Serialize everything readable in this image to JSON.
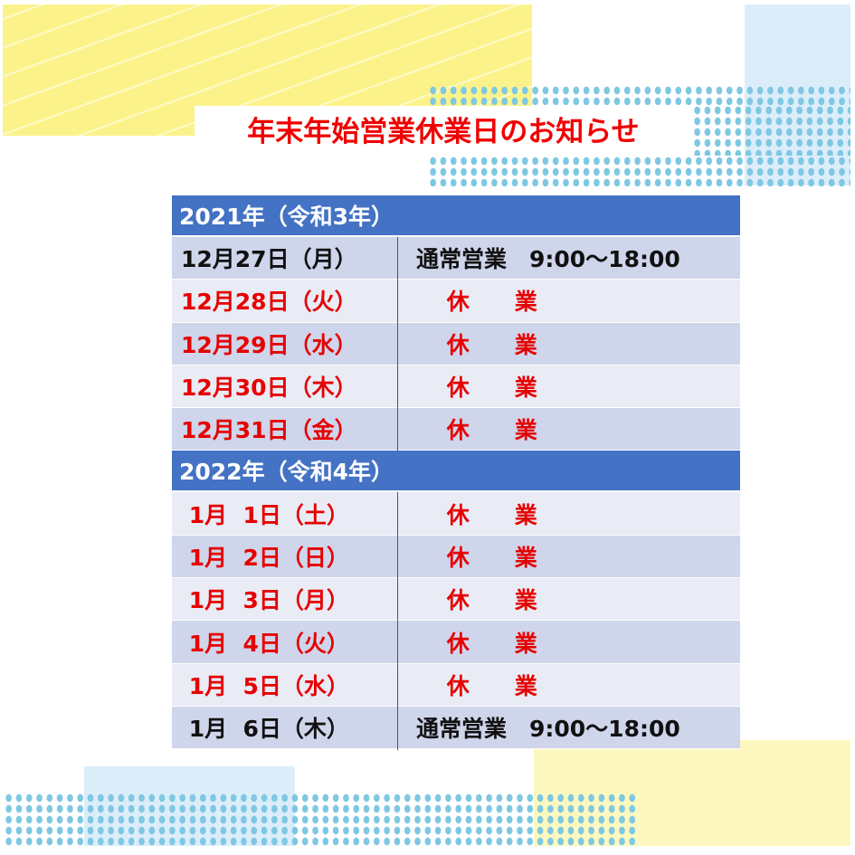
{
  "title": "年末年始営業休業日のお知らせ",
  "colors": {
    "header": "#4472c4",
    "row_dark": "#cfd5ea",
    "row_light": "#e9ebf5",
    "closed_text": "#e60000",
    "title": "#f00000",
    "dots": "#7ec8e3",
    "yellow": "#fbf38a"
  },
  "sections": [
    {
      "header": "2021年（令和3年）",
      "rows": [
        {
          "date": "12月27日（月）",
          "status": "通常営業　9:00～18:00",
          "closed": false
        },
        {
          "date": "12月28日（火）",
          "status": "　 休　　業",
          "closed": true
        },
        {
          "date": "12月29日（水）",
          "status": "　 休　　業",
          "closed": true
        },
        {
          "date": "12月30日（木）",
          "status": "　 休　　業",
          "closed": true
        },
        {
          "date": "12月31日（金）",
          "status": "　 休　　業",
          "closed": true
        }
      ]
    },
    {
      "header": "2022年（令和4年）",
      "rows": [
        {
          "date": " 1月  1日（土）",
          "status": "　 休　　業",
          "closed": true
        },
        {
          "date": " 1月  2日（日）",
          "status": "　 休　　業",
          "closed": true
        },
        {
          "date": " 1月  3日（月）",
          "status": "　 休　　業",
          "closed": true
        },
        {
          "date": " 1月  4日（火）",
          "status": "　 休　　業",
          "closed": true
        },
        {
          "date": " 1月  5日（水）",
          "status": "　 休　　業",
          "closed": true
        },
        {
          "date": " 1月  6日（木）",
          "status": "通常営業　9:00～18:00",
          "closed": false
        }
      ]
    }
  ]
}
